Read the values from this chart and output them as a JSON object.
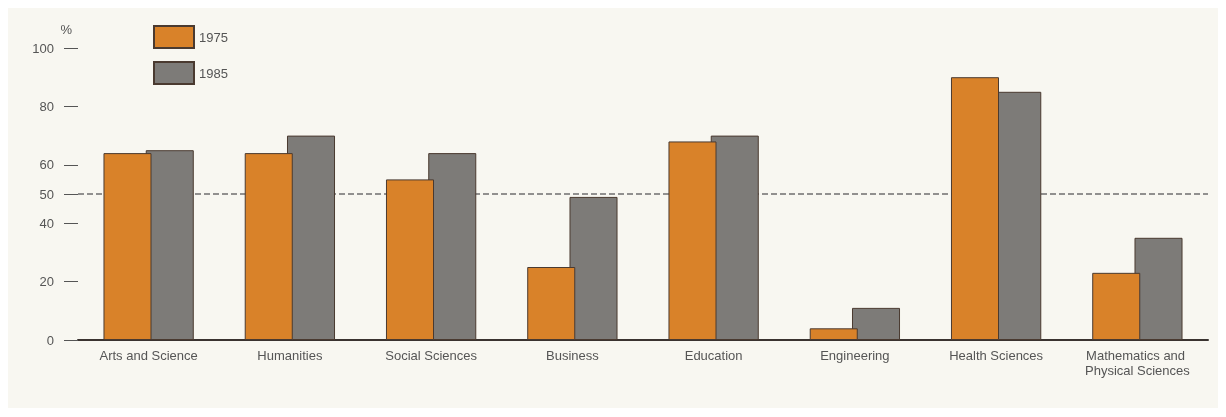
{
  "chart_data": {
    "type": "bar",
    "ylabel": "%",
    "categories": [
      "Arts and Science",
      "Humanities",
      "Social Sciences",
      "Business",
      "Education",
      "Engineering",
      "Health Sciences",
      "Mathematics and Physical Sciences"
    ],
    "series": [
      {
        "name": "1975",
        "color": "#d98229",
        "values": [
          64,
          64,
          55,
          25,
          68,
          4,
          90,
          23
        ]
      },
      {
        "name": "1985",
        "color": "#7d7b78",
        "values": [
          65,
          70,
          64,
          49,
          70,
          11,
          85,
          35
        ]
      }
    ],
    "ylim": [
      0,
      100
    ],
    "yticks": [
      0,
      20,
      40,
      50,
      60,
      80,
      100
    ],
    "grid": false,
    "legend": "top left",
    "ref_lines": [
      {
        "axis": "y",
        "value": 50,
        "line_style": "dashed",
        "color": "#6f6f6f"
      }
    ]
  }
}
